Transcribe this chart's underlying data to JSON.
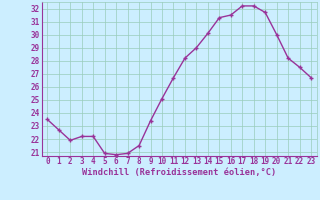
{
  "x": [
    0,
    1,
    2,
    3,
    4,
    5,
    6,
    7,
    8,
    9,
    10,
    11,
    12,
    13,
    14,
    15,
    16,
    17,
    18,
    19,
    20,
    21,
    22,
    23
  ],
  "y": [
    23.5,
    22.7,
    21.9,
    22.2,
    22.2,
    20.9,
    20.8,
    20.9,
    21.5,
    23.4,
    25.1,
    26.7,
    28.2,
    29.0,
    30.1,
    31.3,
    31.5,
    32.2,
    32.2,
    31.7,
    30.0,
    28.2,
    27.5,
    26.7
  ],
  "line_color": "#993399",
  "marker": "+",
  "xlabel": "Windchill (Refroidissement éolien,°C)",
  "ylim": [
    20.7,
    32.5
  ],
  "xlim": [
    -0.5,
    23.5
  ],
  "yticks": [
    21,
    22,
    23,
    24,
    25,
    26,
    27,
    28,
    29,
    30,
    31,
    32
  ],
  "xticks": [
    0,
    1,
    2,
    3,
    4,
    5,
    6,
    7,
    8,
    9,
    10,
    11,
    12,
    13,
    14,
    15,
    16,
    17,
    18,
    19,
    20,
    21,
    22,
    23
  ],
  "bg_color": "#cceeff",
  "grid_color": "#99ccbb",
  "line_width": 1.0,
  "marker_size": 3.5,
  "tick_fontsize": 5.5,
  "xlabel_fontsize": 6.2,
  "tick_color": "#993399",
  "label_color": "#993399",
  "spine_color": "#993399"
}
